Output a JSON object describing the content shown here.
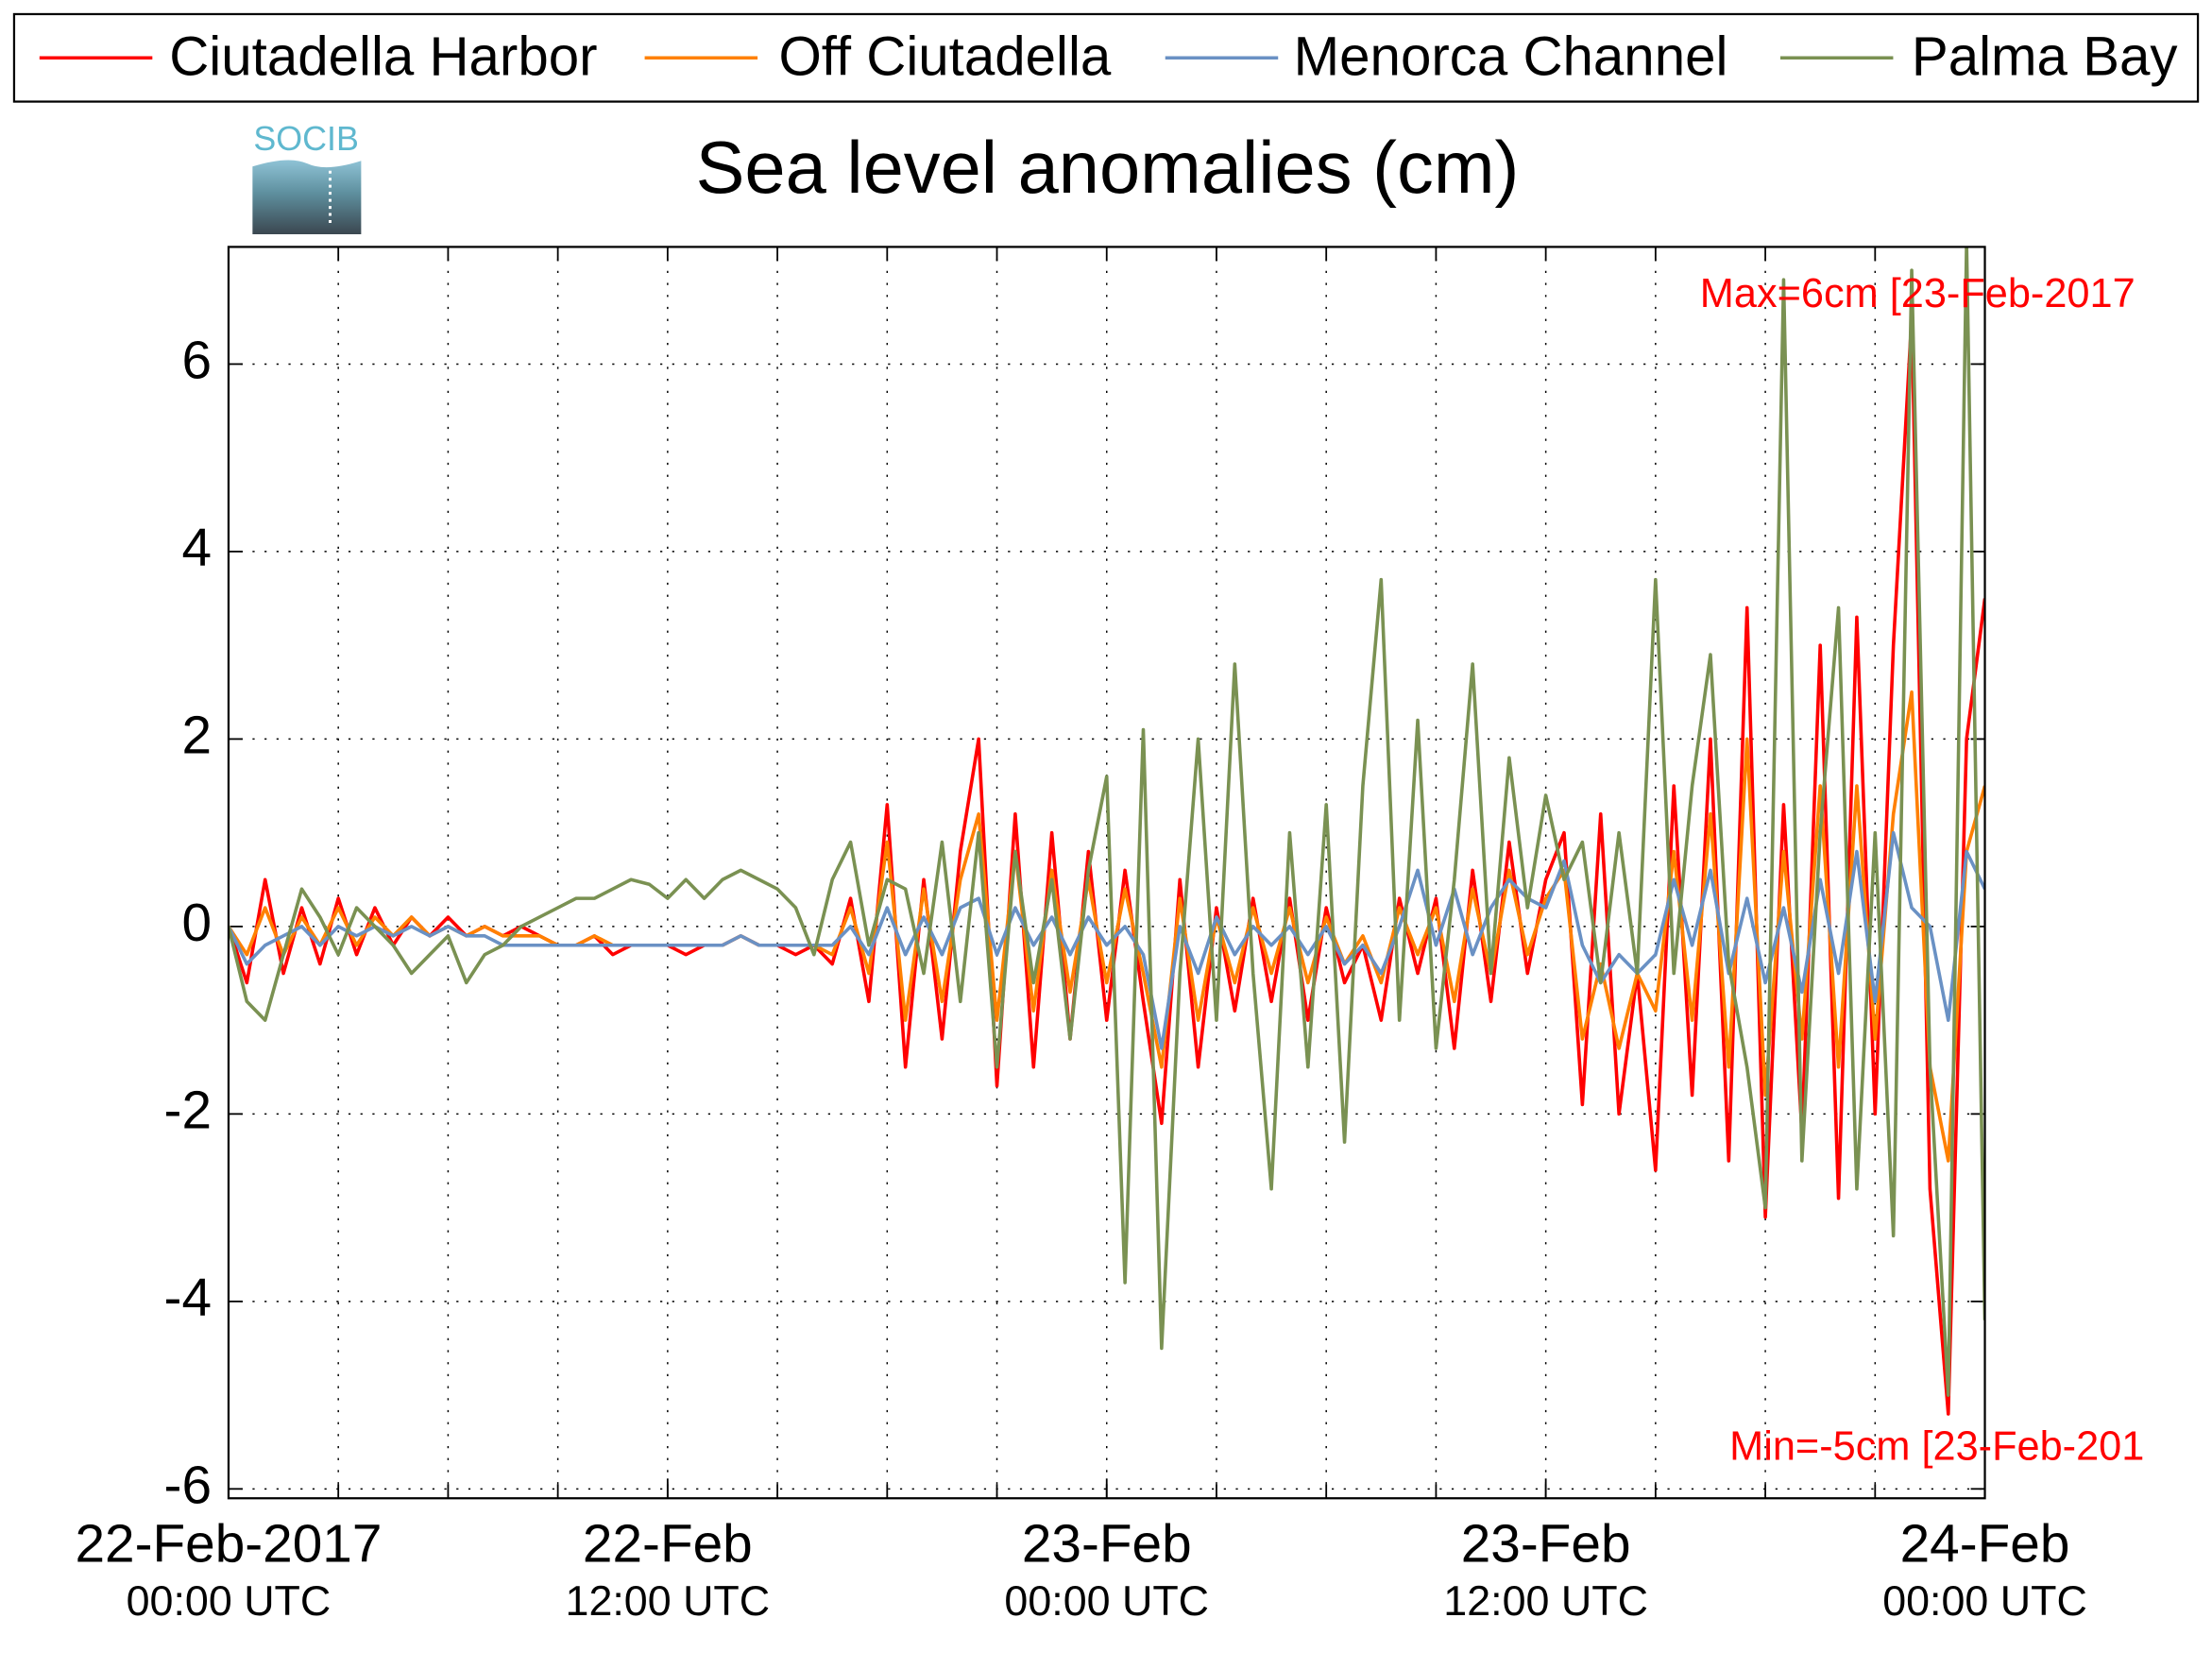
{
  "chart_data": {
    "type": "line",
    "title": "Sea level anomalies (cm)",
    "logo_text": "SOCIB",
    "annotations": [
      {
        "text": "Max=6cm [23-Feb-2017",
        "color": "#ff0000"
      },
      {
        "text": "Min=-5cm [23-Feb-201",
        "color": "#ff0000"
      }
    ],
    "x": [
      "2017-02-22 00:00",
      "2017-02-22 00:30",
      "2017-02-22 01:00",
      "2017-02-22 01:30",
      "2017-02-22 02:00",
      "2017-02-22 02:30",
      "2017-02-22 03:00",
      "2017-02-22 03:30",
      "2017-02-22 04:00",
      "2017-02-22 04:30",
      "2017-02-22 05:00",
      "2017-02-22 05:30",
      "2017-02-22 06:00",
      "2017-02-22 06:30",
      "2017-02-22 07:00",
      "2017-02-22 07:30",
      "2017-02-22 08:00",
      "2017-02-22 08:30",
      "2017-02-22 09:00",
      "2017-02-22 09:30",
      "2017-02-22 10:00",
      "2017-02-22 10:30",
      "2017-02-22 11:00",
      "2017-02-22 11:30",
      "2017-02-22 12:00",
      "2017-02-22 12:30",
      "2017-02-22 13:00",
      "2017-02-22 13:30",
      "2017-02-22 14:00",
      "2017-02-22 14:30",
      "2017-02-22 15:00",
      "2017-02-22 15:30",
      "2017-02-22 16:00",
      "2017-02-22 16:30",
      "2017-02-22 17:00",
      "2017-02-22 17:30",
      "2017-02-22 18:00",
      "2017-02-22 18:30",
      "2017-02-22 19:00",
      "2017-02-22 19:30",
      "2017-02-22 20:00",
      "2017-02-22 20:30",
      "2017-02-22 21:00",
      "2017-02-22 21:30",
      "2017-02-22 22:00",
      "2017-02-22 22:30",
      "2017-02-22 23:00",
      "2017-02-22 23:30",
      "2017-02-23 00:00",
      "2017-02-23 00:30",
      "2017-02-23 01:00",
      "2017-02-23 01:30",
      "2017-02-23 02:00",
      "2017-02-23 02:30",
      "2017-02-23 03:00",
      "2017-02-23 03:30",
      "2017-02-23 04:00",
      "2017-02-23 04:30",
      "2017-02-23 05:00",
      "2017-02-23 05:30",
      "2017-02-23 06:00",
      "2017-02-23 06:30",
      "2017-02-23 07:00",
      "2017-02-23 07:30",
      "2017-02-23 08:00",
      "2017-02-23 08:30",
      "2017-02-23 09:00",
      "2017-02-23 09:30",
      "2017-02-23 10:00",
      "2017-02-23 10:30",
      "2017-02-23 11:00",
      "2017-02-23 11:30",
      "2017-02-23 12:00",
      "2017-02-23 12:30",
      "2017-02-23 13:00",
      "2017-02-23 13:30",
      "2017-02-23 14:00",
      "2017-02-23 14:30",
      "2017-02-23 15:00",
      "2017-02-23 15:30",
      "2017-02-23 16:00",
      "2017-02-23 16:30",
      "2017-02-23 17:00",
      "2017-02-23 17:30",
      "2017-02-23 18:00",
      "2017-02-23 18:30",
      "2017-02-23 19:00",
      "2017-02-23 19:30",
      "2017-02-23 20:00",
      "2017-02-23 20:30",
      "2017-02-23 21:00",
      "2017-02-23 21:30",
      "2017-02-23 22:00",
      "2017-02-23 22:30",
      "2017-02-23 23:00",
      "2017-02-23 23:30",
      "2017-02-24 00:00"
    ],
    "series": [
      {
        "name": "Ciutadella Harbor",
        "color": "#ff0000",
        "values": [
          0,
          -0.6,
          0.5,
          -0.5,
          0.2,
          -0.4,
          0.3,
          -0.3,
          0.2,
          -0.2,
          0.1,
          -0.1,
          0.1,
          -0.1,
          0,
          -0.1,
          0,
          -0.1,
          -0.2,
          -0.2,
          -0.1,
          -0.3,
          -0.2,
          -0.2,
          -0.2,
          -0.3,
          -0.2,
          -0.2,
          -0.1,
          -0.2,
          -0.2,
          -0.3,
          -0.2,
          -0.4,
          0.3,
          -0.8,
          1.3,
          -1.5,
          0.5,
          -1.2,
          0.8,
          2.0,
          -1.7,
          1.2,
          -1.5,
          1.0,
          -1.2,
          0.8,
          -1.0,
          0.6,
          -0.8,
          -2.1,
          0.5,
          -1.5,
          0.2,
          -0.9,
          0.3,
          -0.8,
          0.3,
          -1.0,
          0.2,
          -0.6,
          -0.2,
          -1.0,
          0.3,
          -0.5,
          0.3,
          -1.3,
          0.6,
          -0.8,
          0.9,
          -0.5,
          0.5,
          1.0,
          -1.9,
          1.2,
          -2.0,
          -0.5,
          -2.6,
          1.5,
          -1.8,
          2.0,
          -2.5,
          3.4,
          -3.1,
          1.3,
          -2.2,
          3.0,
          -2.9,
          3.3,
          -2.0,
          3.0,
          6.5,
          -2.8,
          -5.2,
          2.0,
          3.5
        ]
      },
      {
        "name": "Off Ciutadella",
        "color": "#ff8000",
        "values": [
          0,
          -0.3,
          0.2,
          -0.3,
          0.1,
          -0.2,
          0.2,
          -0.2,
          0.1,
          -0.1,
          0.1,
          -0.1,
          0,
          -0.1,
          0,
          -0.1,
          -0.1,
          -0.1,
          -0.2,
          -0.2,
          -0.1,
          -0.2,
          -0.2,
          -0.2,
          -0.2,
          -0.2,
          -0.2,
          -0.2,
          -0.1,
          -0.2,
          -0.2,
          -0.2,
          -0.2,
          -0.3,
          0.2,
          -0.5,
          0.9,
          -1.0,
          0.4,
          -0.8,
          0.5,
          1.2,
          -1.0,
          0.8,
          -0.9,
          0.6,
          -0.7,
          0.5,
          -0.6,
          0.4,
          -0.5,
          -1.5,
          0.3,
          -1.0,
          0.1,
          -0.6,
          0.2,
          -0.5,
          0.2,
          -0.6,
          0.1,
          -0.4,
          -0.1,
          -0.6,
          0.2,
          -0.3,
          0.2,
          -0.8,
          0.4,
          -0.5,
          0.6,
          -0.3,
          0.3,
          0.6,
          -1.2,
          -0.4,
          -1.3,
          -0.5,
          -0.9,
          0.8,
          -1.0,
          1.2,
          -1.5,
          2.0,
          -1.8,
          0.8,
          -1.2,
          1.5,
          -1.5,
          1.5,
          -1.2,
          1.2,
          2.5,
          -1.5,
          -2.5,
          0.8,
          1.5
        ]
      },
      {
        "name": "Menorca Channel",
        "color": "#6a91c4",
        "values": [
          0,
          -0.4,
          -0.2,
          -0.1,
          0,
          -0.2,
          0,
          -0.1,
          0,
          -0.1,
          0,
          -0.1,
          0,
          -0.1,
          -0.1,
          -0.2,
          -0.2,
          -0.2,
          -0.2,
          -0.2,
          -0.2,
          -0.2,
          -0.2,
          -0.2,
          -0.2,
          -0.2,
          -0.2,
          -0.2,
          -0.1,
          -0.2,
          -0.2,
          -0.2,
          -0.2,
          -0.2,
          0,
          -0.3,
          0.2,
          -0.3,
          0.1,
          -0.3,
          0.2,
          0.3,
          -0.3,
          0.2,
          -0.2,
          0.1,
          -0.3,
          0.1,
          -0.2,
          0,
          -0.3,
          -1.3,
          0,
          -0.5,
          0.1,
          -0.3,
          0,
          -0.2,
          0,
          -0.3,
          0,
          -0.4,
          -0.2,
          -0.5,
          0,
          0.6,
          -0.2,
          0.4,
          -0.3,
          0.2,
          0.5,
          0.3,
          0.2,
          0.7,
          -0.2,
          -0.6,
          -0.3,
          -0.5,
          -0.3,
          0.5,
          -0.2,
          0.6,
          -0.5,
          0.3,
          -0.6,
          0.2,
          -0.7,
          0.5,
          -0.5,
          0.8,
          -0.8,
          1.0,
          0.2,
          0,
          -1.0,
          0.8,
          0.4
        ]
      },
      {
        "name": "Palma Bay",
        "color": "#7a9152",
        "values": [
          0,
          -0.8,
          -1.0,
          -0.3,
          0.4,
          0.1,
          -0.3,
          0.2,
          0,
          -0.2,
          -0.5,
          -0.3,
          -0.1,
          -0.6,
          -0.3,
          -0.2,
          0,
          0.1,
          0.2,
          0.3,
          0.3,
          0.4,
          0.5,
          0.45,
          0.3,
          0.5,
          0.3,
          0.5,
          0.6,
          0.5,
          0.4,
          0.2,
          -0.3,
          0.5,
          0.9,
          -0.2,
          0.5,
          0.4,
          -0.5,
          0.9,
          -0.8,
          1.0,
          -1.5,
          0.8,
          -0.6,
          0.5,
          -1.2,
          0.6,
          1.6,
          -3.8,
          2.1,
          -4.5,
          -0.5,
          2.0,
          -1.0,
          2.8,
          -0.5,
          -2.8,
          1.0,
          -1.5,
          1.3,
          -2.3,
          1.5,
          3.7,
          -1.0,
          2.2,
          -1.3,
          0.5,
          2.8,
          -0.5,
          1.8,
          0.2,
          1.4,
          0.5,
          0.9,
          -0.6,
          1.0,
          -0.5,
          3.7,
          -0.5,
          1.5,
          2.9,
          -0.4,
          -1.5,
          -3.0,
          6.9,
          -2.5,
          1.0,
          3.4,
          -2.8,
          1.0,
          -3.3,
          7.0,
          -1.5,
          -5.0,
          7.3,
          -4.2
        ]
      }
    ],
    "xlim": [
      "2017-02-22 00:00",
      "2017-02-24 00:00"
    ],
    "xticks": [
      {
        "value": "2017-02-22 00:00",
        "label": "22-Feb-2017"
      },
      {
        "value": "2017-02-22 12:00",
        "label": "22-Feb"
      },
      {
        "value": "2017-02-23 00:00",
        "label": "23-Feb"
      },
      {
        "value": "2017-02-23 12:00",
        "label": "23-Feb"
      },
      {
        "value": "2017-02-24 00:00",
        "label": "24-Feb"
      }
    ],
    "xtick_times": [
      "00:00 UTC",
      "12:00 UTC",
      "00:00 UTC",
      "12:00 UTC",
      "00:00 UTC"
    ],
    "xminorticks": [
      "2017-02-22 03:00",
      "2017-02-22 06:00",
      "2017-02-22 09:00",
      "2017-02-22 12:00",
      "2017-02-22 15:00",
      "2017-02-22 18:00",
      "2017-02-22 21:00",
      "2017-02-23 00:00",
      "2017-02-23 03:00",
      "2017-02-23 06:00",
      "2017-02-23 09:00",
      "2017-02-23 12:00",
      "2017-02-23 15:00",
      "2017-02-23 18:00",
      "2017-02-23 21:00"
    ],
    "ylim": [
      -6.1,
      7.25
    ],
    "yticks": [
      -6,
      -4,
      -2,
      0,
      2,
      4,
      6
    ],
    "grid": true,
    "legend": "top"
  }
}
